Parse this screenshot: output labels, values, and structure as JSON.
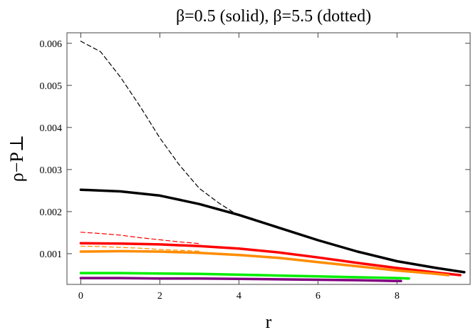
{
  "chart_data": {
    "type": "line",
    "title": "β=0.5 (solid), β=5.5 (dotted)",
    "xlabel": "r",
    "ylabel": "ρ−P⊥",
    "xlim": [
      -0.35,
      9.85
    ],
    "ylim": [
      0.00027,
      0.00625
    ],
    "x_ticks": [
      0,
      2,
      4,
      6,
      8
    ],
    "y_ticks": [
      0.001,
      0.002,
      0.003,
      0.004,
      0.005,
      0.006
    ],
    "x_tick_labels": [
      "0",
      "2",
      "4",
      "6",
      "8"
    ],
    "y_tick_labels": [
      "0.001",
      "0.002",
      "0.003",
      "0.004",
      "0.005",
      "0.006"
    ],
    "grid": false,
    "legend": "none",
    "series": [
      {
        "color": "#000000",
        "style": "dashed",
        "points": [
          [
            0,
            0.00605
          ],
          [
            0.5,
            0.0058
          ],
          [
            1,
            0.0052
          ],
          [
            1.5,
            0.0045
          ],
          [
            2,
            0.00375
          ],
          [
            2.5,
            0.0031
          ],
          [
            3,
            0.00255
          ],
          [
            3.5,
            0.0022
          ],
          [
            4,
            0.0019
          ],
          [
            4.4,
            0.00183
          ]
        ]
      },
      {
        "color": "#000000",
        "style": "solid",
        "points": [
          [
            0,
            0.00252
          ],
          [
            1,
            0.00248
          ],
          [
            2,
            0.00238
          ],
          [
            3,
            0.00218
          ],
          [
            4,
            0.00192
          ],
          [
            5,
            0.00162
          ],
          [
            6,
            0.00132
          ],
          [
            7,
            0.00105
          ],
          [
            8,
            0.00082
          ],
          [
            9,
            0.00066
          ],
          [
            9.7,
            0.00056
          ]
        ]
      },
      {
        "color": "#ff0000",
        "style": "dashed",
        "points": [
          [
            0,
            0.00151
          ],
          [
            0.5,
            0.00148
          ],
          [
            1,
            0.00144
          ],
          [
            1.5,
            0.00138
          ],
          [
            2,
            0.00133
          ],
          [
            2.5,
            0.00128
          ],
          [
            3,
            0.00124
          ]
        ]
      },
      {
        "color": "#ff0000",
        "style": "solid",
        "points": [
          [
            0,
            0.00125
          ],
          [
            1,
            0.00124
          ],
          [
            2,
            0.00122
          ],
          [
            3,
            0.00118
          ],
          [
            4,
            0.00112
          ],
          [
            5,
            0.00103
          ],
          [
            6,
            0.00091
          ],
          [
            7,
            0.00078
          ],
          [
            8,
            0.00066
          ],
          [
            9,
            0.00055
          ],
          [
            9.6,
            0.00049
          ]
        ]
      },
      {
        "color": "#ff8c00",
        "style": "dashed",
        "points": [
          [
            0,
            0.00118
          ],
          [
            0.5,
            0.00117
          ],
          [
            1,
            0.00115
          ],
          [
            1.5,
            0.00113
          ],
          [
            2,
            0.0011
          ],
          [
            2.5,
            0.00108
          ],
          [
            3,
            0.00106
          ]
        ]
      },
      {
        "color": "#ff8c00",
        "style": "solid",
        "points": [
          [
            0,
            0.00105
          ],
          [
            1,
            0.00106
          ],
          [
            2,
            0.00105
          ],
          [
            3,
            0.00102
          ],
          [
            4,
            0.00097
          ],
          [
            5,
            0.0009
          ],
          [
            6,
            0.0008
          ],
          [
            7,
            0.0007
          ],
          [
            8,
            0.0006
          ],
          [
            9,
            0.00052
          ],
          [
            9.3,
            0.00049
          ]
        ]
      },
      {
        "color": "#00ee00",
        "style": "solid",
        "points": [
          [
            0,
            0.00054
          ],
          [
            1,
            0.00054
          ],
          [
            2,
            0.00053
          ],
          [
            3,
            0.00052
          ],
          [
            4,
            0.0005
          ],
          [
            5,
            0.00048
          ],
          [
            6,
            0.00046
          ],
          [
            7,
            0.00044
          ],
          [
            8,
            0.00042
          ],
          [
            8.3,
            0.00041
          ]
        ]
      },
      {
        "color": "#800080",
        "style": "solid",
        "points": [
          [
            0,
            0.00042
          ],
          [
            1,
            0.00042
          ],
          [
            2,
            0.00041
          ],
          [
            3,
            0.00041
          ],
          [
            4,
            0.0004
          ],
          [
            5,
            0.00039
          ],
          [
            6,
            0.00038
          ],
          [
            7,
            0.00037
          ],
          [
            8,
            0.00035
          ],
          [
            8.1,
            0.00035
          ]
        ]
      }
    ]
  }
}
